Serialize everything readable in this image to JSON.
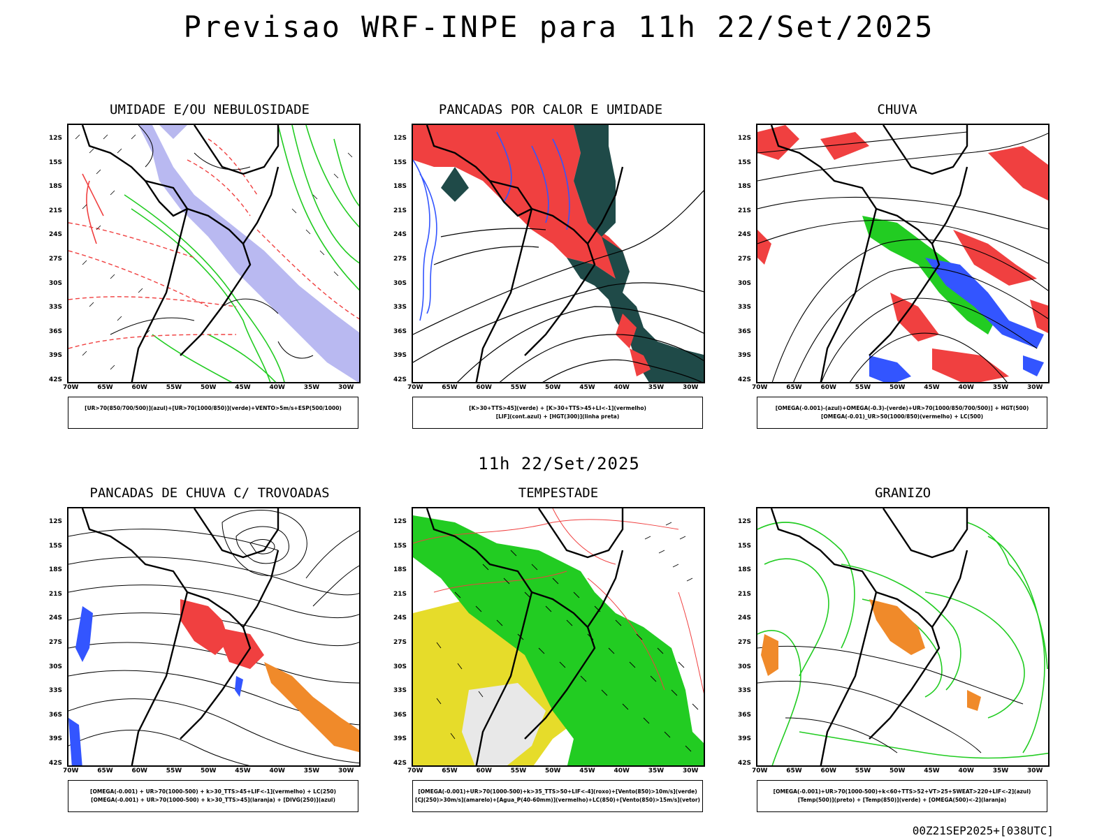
{
  "header": {
    "title": "Previsao WRF-INPE  para 11h 22/Set/2025"
  },
  "mid_label": "11h 22/Set/2025",
  "footer": {
    "stamp": "00Z21SEP2025+[038UTC]"
  },
  "axes": {
    "lat_labels": [
      "12S",
      "15S",
      "18S",
      "21S",
      "24S",
      "27S",
      "30S",
      "33S",
      "36S",
      "39S",
      "42S"
    ],
    "lon_labels": [
      "70W",
      "65W",
      "60W",
      "55W",
      "50W",
      "45W",
      "40W",
      "35W",
      "30W"
    ]
  },
  "panels": [
    {
      "title": "UMIDADE E/OU NEBULOSIDADE",
      "legend": [
        "[UR>70(850/700/500)](azul)+[UR>70(1000/850)](verde)+VENTO>5m/s+ESP(500/1000)"
      ]
    },
    {
      "title": "PANCADAS POR CALOR E UMIDADE",
      "legend": [
        "[K>30+TTS>45](verde) + [K>30+TTS>45+LI<-1](vermelho)",
        "[LIF](cont.azul) + [HGT(300)](linha preta)"
      ]
    },
    {
      "title": "CHUVA",
      "legend": [
        "[OMEGA(-0.001)-(azul)+OMEGA(-0.3)-(verde)+UR>70(1000/850/700/500)] + HGT(500)",
        "[OMEGA(-0.01)_UR>50(1000/850)(vermelho) + LC(500)"
      ]
    },
    {
      "title": "PANCADAS DE CHUVA C/ TROVOADAS",
      "legend": [
        "[OMEGA(-0.001) + UR>70(1000-500) + k>30_TTS>45+LIF<-1](vermelho) + LC(250)",
        "[OMEGA(-0.001) + UR>70(1000-500) + k>30_TTS>45](laranja) + [DIVG(250)](azul)"
      ]
    },
    {
      "title": "TEMPESTADE",
      "legend": [
        "[OMEGA(-0.001)+UR>70(1000-500)+k>35_TTS>50+LIF<-4](roxo)+[Vento(850)>10m/s](verde)",
        "[CJ(250)>30m/s](amarelo)+[Agua_P(40-60mm)](vermelho)+LC(850)+[Vento(850)>15m/s](vetor)"
      ]
    },
    {
      "title": "GRANIZO",
      "legend": [
        "[OMEGA(-0.001)+UR>70(1000-500)+k<60+TTS>52+VT>25+SWEAT>220+LIF<-2](azul)",
        "[Temp(500)](preto) + [Temp(850)](verde) + [OMEGA(500)<-2](laranja)"
      ]
    }
  ],
  "colors": {
    "red": "#f04040",
    "green": "#22cc22",
    "blue": "#3355ff",
    "lightblue": "#9999ee",
    "darkteal": "#1f4a48",
    "orange": "#f08a2a",
    "yellow": "#e6dc2a",
    "black": "#000000"
  }
}
